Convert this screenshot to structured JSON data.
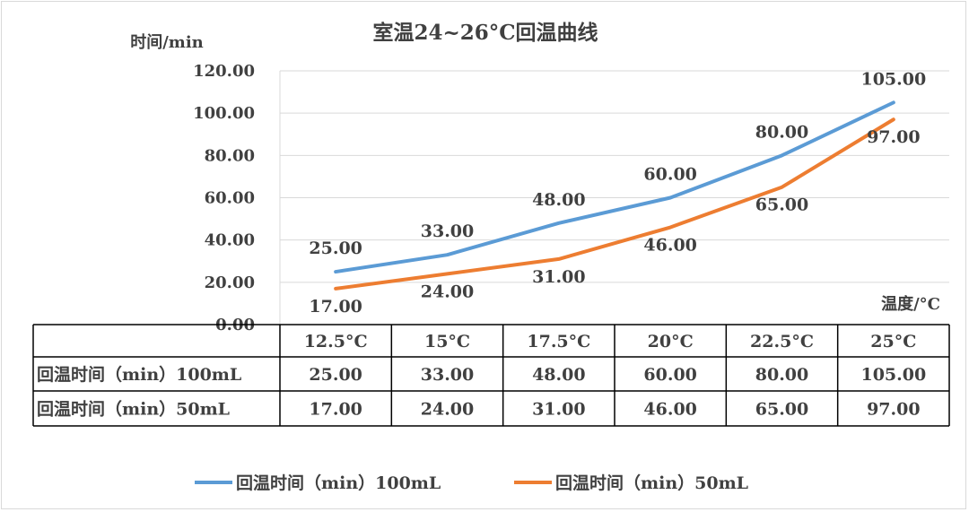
{
  "chart_data": {
    "type": "line",
    "title": "室温24~26°C回温曲线",
    "ylabel": "时间/min",
    "xlabel": "温度/°C",
    "ylim": [
      0,
      120
    ],
    "ytick_step": 20,
    "ytick_labels": [
      "0.00",
      "20.00",
      "40.00",
      "60.00",
      "80.00",
      "100.00",
      "120.00"
    ],
    "grid": true,
    "legend_position": "bottom",
    "categories": [
      "12.5°C",
      "15°C",
      "17.5°C",
      "20°C",
      "22.5°C",
      "25°C"
    ],
    "series": [
      {
        "name": "回温时间（min）100mL",
        "color": "#5b9bd5",
        "values": [
          25,
          33,
          48,
          60,
          80,
          105
        ],
        "labels": [
          "25.00",
          "33.00",
          "48.00",
          "60.00",
          "80.00",
          "105.00"
        ]
      },
      {
        "name": "回温时间（min）50mL",
        "color": "#ed7d31",
        "values": [
          17,
          24,
          31,
          46,
          65,
          97
        ],
        "labels": [
          "17.00",
          "24.00",
          "31.00",
          "46.00",
          "65.00",
          "97.00"
        ]
      }
    ],
    "data_table": true
  }
}
